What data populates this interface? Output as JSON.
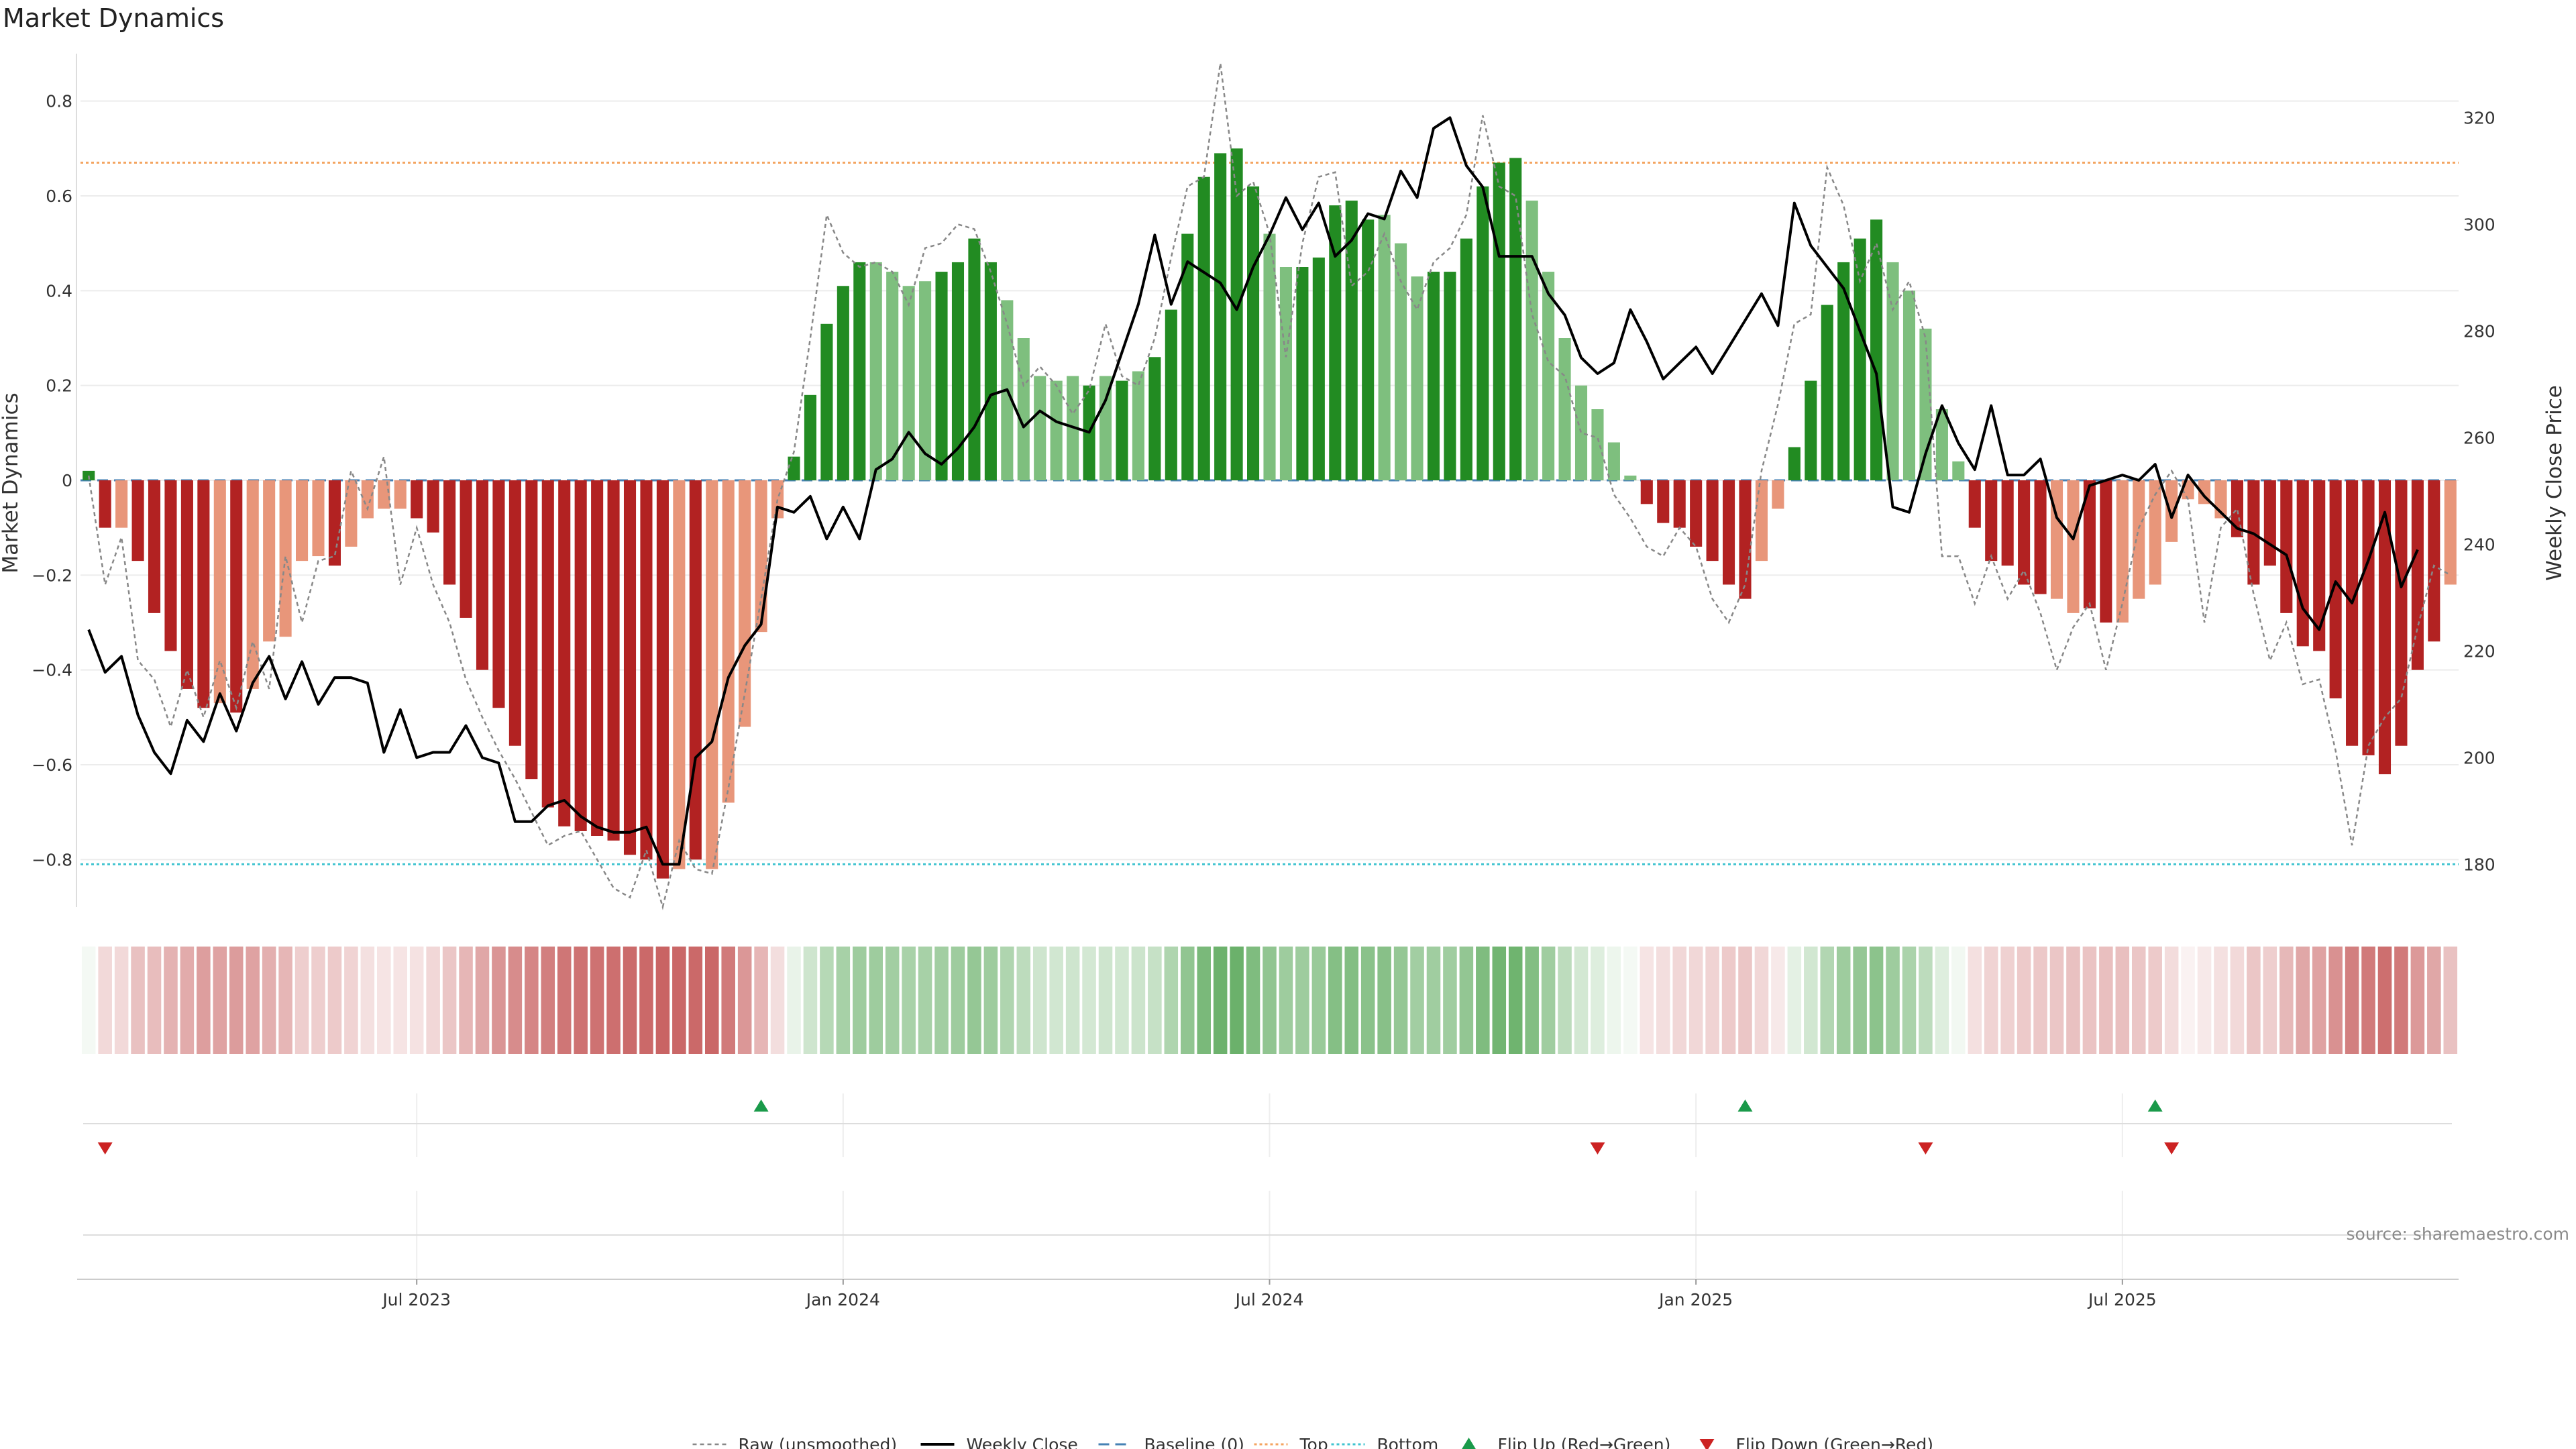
{
  "title": "Market Dynamics",
  "source": "source: sharemaestro.com",
  "colors": {
    "strong_green": "#228b22",
    "light_green": "#7ebf7e",
    "strong_red": "#b22222",
    "light_red": "#e8967a",
    "close_line": "#000000",
    "raw_line": "#888888",
    "baseline": "#4682b4",
    "top": "#f4a460",
    "bottom": "#40c4d0",
    "flip_up": "#1a9a4a",
    "flip_down": "#cc2222"
  },
  "legend": [
    {
      "key": "raw",
      "label": "Raw (unsmoothed)"
    },
    {
      "key": "close",
      "label": "Weekly Close"
    },
    {
      "key": "baseline",
      "label": "Baseline (0)"
    },
    {
      "key": "top",
      "label": "Top"
    },
    {
      "key": "bottom",
      "label": "Bottom"
    },
    {
      "key": "flip_up",
      "label": "Flip Up (Red→Green)"
    },
    {
      "key": "flip_down",
      "label": "Flip Down (Green→Red)"
    }
  ],
  "chart_data": {
    "type": "bar",
    "ylabel_left": "Market Dynamics",
    "ylabel_right": "Weekly Close Price",
    "ylim_left": [
      -0.9,
      0.9
    ],
    "ylim_right": [
      172,
      332
    ],
    "yticks_left": [
      "0.8",
      "0.6",
      "0.4",
      "0.2",
      "0",
      "−0.2",
      "−0.4",
      "−0.6",
      "−0.8"
    ],
    "yticks_left_values": [
      0.8,
      0.6,
      0.4,
      0.2,
      0,
      -0.2,
      -0.4,
      -0.6,
      -0.8
    ],
    "yticks_right": [
      "320",
      "300",
      "280",
      "260",
      "240",
      "220",
      "200",
      "180"
    ],
    "yticks_right_values": [
      320,
      300,
      280,
      260,
      240,
      220,
      200,
      180
    ],
    "xticks": [
      "Jul 2023",
      "Jan 2024",
      "Jul 2024",
      "Jan 2025",
      "Jul 2025"
    ],
    "xticks_week": [
      20,
      46,
      72,
      98,
      124
    ],
    "reference_lines": {
      "top": 0.67,
      "bottom": -0.81,
      "baseline": 0
    },
    "dynamics": [
      0.02,
      -0.1,
      -0.1,
      -0.17,
      -0.28,
      -0.36,
      -0.44,
      -0.48,
      -0.47,
      -0.49,
      -0.44,
      -0.34,
      -0.33,
      -0.17,
      -0.16,
      -0.18,
      -0.14,
      -0.08,
      -0.06,
      -0.06,
      -0.08,
      -0.11,
      -0.22,
      -0.29,
      -0.4,
      -0.48,
      -0.56,
      -0.63,
      -0.69,
      -0.73,
      -0.74,
      -0.75,
      -0.76,
      -0.79,
      -0.8,
      -0.84,
      -0.82,
      -0.8,
      -0.82,
      -0.68,
      -0.52,
      -0.32,
      -0.08,
      0.05,
      0.18,
      0.33,
      0.41,
      0.46,
      0.46,
      0.44,
      0.41,
      0.42,
      0.44,
      0.46,
      0.51,
      0.46,
      0.38,
      0.3,
      0.22,
      0.21,
      0.22,
      0.2,
      0.22,
      0.21,
      0.23,
      0.26,
      0.36,
      0.52,
      0.64,
      0.69,
      0.7,
      0.62,
      0.52,
      0.45,
      0.45,
      0.47,
      0.58,
      0.59,
      0.55,
      0.56,
      0.5,
      0.43,
      0.44,
      0.44,
      0.51,
      0.62,
      0.67,
      0.68,
      0.59,
      0.44,
      0.3,
      0.2,
      0.15,
      0.08,
      0.01,
      -0.05,
      -0.09,
      -0.1,
      -0.14,
      -0.17,
      -0.22,
      -0.25,
      -0.17,
      -0.06,
      0.07,
      0.21,
      0.37,
      0.46,
      0.51,
      0.55,
      0.46,
      0.4,
      0.32,
      0.15,
      0.04,
      -0.1,
      -0.17,
      -0.18,
      -0.22,
      -0.24,
      -0.25,
      -0.28,
      -0.27,
      -0.3,
      -0.3,
      -0.25,
      -0.22,
      -0.13,
      -0.04,
      -0.05,
      -0.08,
      -0.12,
      -0.22,
      -0.18,
      -0.28,
      -0.35,
      -0.36,
      -0.46,
      -0.56,
      -0.58,
      -0.62,
      -0.56,
      -0.4,
      -0.34,
      -0.22
    ],
    "colors_code": [
      "G",
      "R",
      "r",
      "R",
      "R",
      "R",
      "R",
      "R",
      "r",
      "R",
      "r",
      "r",
      "r",
      "r",
      "r",
      "R",
      "r",
      "r",
      "r",
      "r",
      "R",
      "R",
      "R",
      "R",
      "R",
      "R",
      "R",
      "R",
      "R",
      "R",
      "R",
      "R",
      "R",
      "R",
      "R",
      "R",
      "r",
      "R",
      "r",
      "r",
      "r",
      "r",
      "r",
      "G",
      "G",
      "G",
      "G",
      "G",
      "g",
      "g",
      "g",
      "g",
      "G",
      "G",
      "G",
      "G",
      "g",
      "g",
      "g",
      "g",
      "g",
      "G",
      "g",
      "G",
      "g",
      "G",
      "G",
      "G",
      "G",
      "G",
      "G",
      "G",
      "g",
      "g",
      "G",
      "G",
      "G",
      "G",
      "G",
      "g",
      "g",
      "g",
      "G",
      "G",
      "G",
      "G",
      "G",
      "G",
      "g",
      "g",
      "g",
      "g",
      "g",
      "g",
      "g",
      "R",
      "R",
      "R",
      "R",
      "R",
      "R",
      "R",
      "r",
      "r",
      "G",
      "G",
      "G",
      "G",
      "G",
      "G",
      "g",
      "g",
      "g",
      "g",
      "g",
      "R",
      "R",
      "R",
      "R",
      "R",
      "r",
      "r",
      "R",
      "R",
      "r",
      "r",
      "r",
      "r",
      "r",
      "r",
      "r",
      "R",
      "R",
      "R",
      "R",
      "R",
      "R",
      "R",
      "R",
      "R",
      "R",
      "R",
      "R",
      "R",
      "r",
      "r",
      "r",
      "r"
    ],
    "raw": [
      0.01,
      -0.22,
      -0.12,
      -0.38,
      -0.42,
      -0.52,
      -0.4,
      -0.5,
      -0.38,
      -0.48,
      -0.34,
      -0.44,
      -0.16,
      -0.3,
      -0.17,
      -0.16,
      0.02,
      -0.06,
      0.05,
      -0.22,
      -0.1,
      -0.22,
      -0.3,
      -0.42,
      -0.5,
      -0.57,
      -0.63,
      -0.7,
      -0.77,
      -0.75,
      -0.74,
      -0.8,
      -0.86,
      -0.88,
      -0.78,
      -0.9,
      -0.76,
      -0.82,
      -0.83,
      -0.65,
      -0.45,
      -0.25,
      -0.04,
      0.06,
      0.3,
      0.56,
      0.48,
      0.45,
      0.46,
      0.44,
      0.37,
      0.49,
      0.5,
      0.54,
      0.53,
      0.44,
      0.33,
      0.2,
      0.24,
      0.2,
      0.14,
      0.19,
      0.33,
      0.22,
      0.2,
      0.3,
      0.47,
      0.62,
      0.64,
      0.88,
      0.6,
      0.63,
      0.52,
      0.26,
      0.5,
      0.64,
      0.65,
      0.41,
      0.44,
      0.52,
      0.42,
      0.36,
      0.46,
      0.49,
      0.56,
      0.77,
      0.62,
      0.6,
      0.35,
      0.25,
      0.22,
      0.1,
      0.09,
      -0.03,
      -0.08,
      -0.14,
      -0.16,
      -0.1,
      -0.14,
      -0.25,
      -0.3,
      -0.22,
      0.02,
      0.16,
      0.33,
      0.35,
      0.66,
      0.58,
      0.42,
      0.5,
      0.36,
      0.42,
      0.3,
      -0.16,
      -0.16,
      -0.26,
      -0.16,
      -0.25,
      -0.19,
      -0.28,
      -0.4,
      -0.31,
      -0.26,
      -0.4,
      -0.26,
      -0.1,
      -0.03,
      0.02,
      -0.04,
      -0.3,
      -0.1,
      -0.06,
      -0.24,
      -0.38,
      -0.3,
      -0.43,
      -0.42,
      -0.57,
      -0.77,
      -0.56,
      -0.5,
      -0.46,
      -0.31,
      -0.18,
      -0.2
    ],
    "close": [
      224,
      216,
      219,
      208,
      201,
      197,
      207,
      203,
      212,
      205,
      214,
      219,
      211,
      218,
      210,
      215,
      215,
      214,
      201,
      209,
      200,
      201,
      201,
      206,
      200,
      199,
      188,
      188,
      191,
      192,
      189,
      187,
      186,
      186,
      187,
      180,
      180,
      200,
      203,
      215,
      221,
      225,
      247,
      246,
      249,
      241,
      247,
      241,
      254,
      256,
      261,
      257,
      255,
      258,
      262,
      268,
      269,
      262,
      265,
      263,
      262,
      261,
      267,
      276,
      285,
      298,
      285,
      293,
      291,
      289,
      284,
      292,
      298,
      305,
      299,
      304,
      294,
      297,
      302,
      301,
      310,
      305,
      318,
      320,
      311,
      307,
      294,
      294,
      294,
      287,
      283,
      275,
      272,
      274,
      284,
      278,
      271,
      274,
      277,
      272,
      277,
      282,
      287,
      281,
      304,
      296,
      292,
      288,
      280,
      272,
      247,
      246,
      257,
      266,
      259,
      254,
      266,
      253,
      253,
      256,
      245,
      241,
      251,
      252,
      253,
      252,
      255,
      245,
      253,
      249,
      246,
      243,
      242,
      240,
      238,
      228,
      224,
      233,
      229,
      237,
      246,
      232,
      239
    ],
    "flip_up_weeks": [
      41,
      101,
      126
    ],
    "flip_down_weeks": [
      1,
      92,
      112,
      127
    ],
    "heat_values": [
      0.05,
      0.17,
      0.17,
      0.28,
      0.3,
      0.35,
      0.38,
      0.44,
      0.42,
      0.45,
      0.42,
      0.36,
      0.33,
      0.22,
      0.22,
      0.24,
      0.2,
      0.14,
      0.12,
      0.12,
      0.13,
      0.18,
      0.26,
      0.33,
      0.4,
      0.48,
      0.52,
      0.55,
      0.58,
      0.62,
      0.64,
      0.64,
      0.65,
      0.67,
      0.68,
      0.7,
      0.69,
      0.68,
      0.69,
      0.6,
      0.47,
      0.33,
      0.15,
      0.1,
      0.22,
      0.33,
      0.4,
      0.44,
      0.44,
      0.42,
      0.39,
      0.4,
      0.42,
      0.44,
      0.48,
      0.44,
      0.36,
      0.3,
      0.22,
      0.21,
      0.22,
      0.2,
      0.22,
      0.21,
      0.23,
      0.26,
      0.36,
      0.5,
      0.6,
      0.66,
      0.67,
      0.58,
      0.5,
      0.44,
      0.44,
      0.46,
      0.55,
      0.56,
      0.53,
      0.54,
      0.48,
      0.42,
      0.43,
      0.43,
      0.49,
      0.58,
      0.64,
      0.65,
      0.56,
      0.43,
      0.3,
      0.2,
      0.15,
      0.08,
      0.05,
      0.12,
      0.15,
      0.18,
      0.18,
      0.2,
      0.24,
      0.26,
      0.18,
      0.1,
      0.12,
      0.21,
      0.35,
      0.44,
      0.48,
      0.52,
      0.44,
      0.38,
      0.3,
      0.15,
      0.06,
      0.14,
      0.2,
      0.21,
      0.24,
      0.25,
      0.26,
      0.28,
      0.27,
      0.29,
      0.29,
      0.26,
      0.24,
      0.16,
      0.06,
      0.1,
      0.14,
      0.17,
      0.26,
      0.22,
      0.32,
      0.4,
      0.42,
      0.5,
      0.58,
      0.6,
      0.65,
      0.6,
      0.46,
      0.4,
      0.28
    ]
  }
}
